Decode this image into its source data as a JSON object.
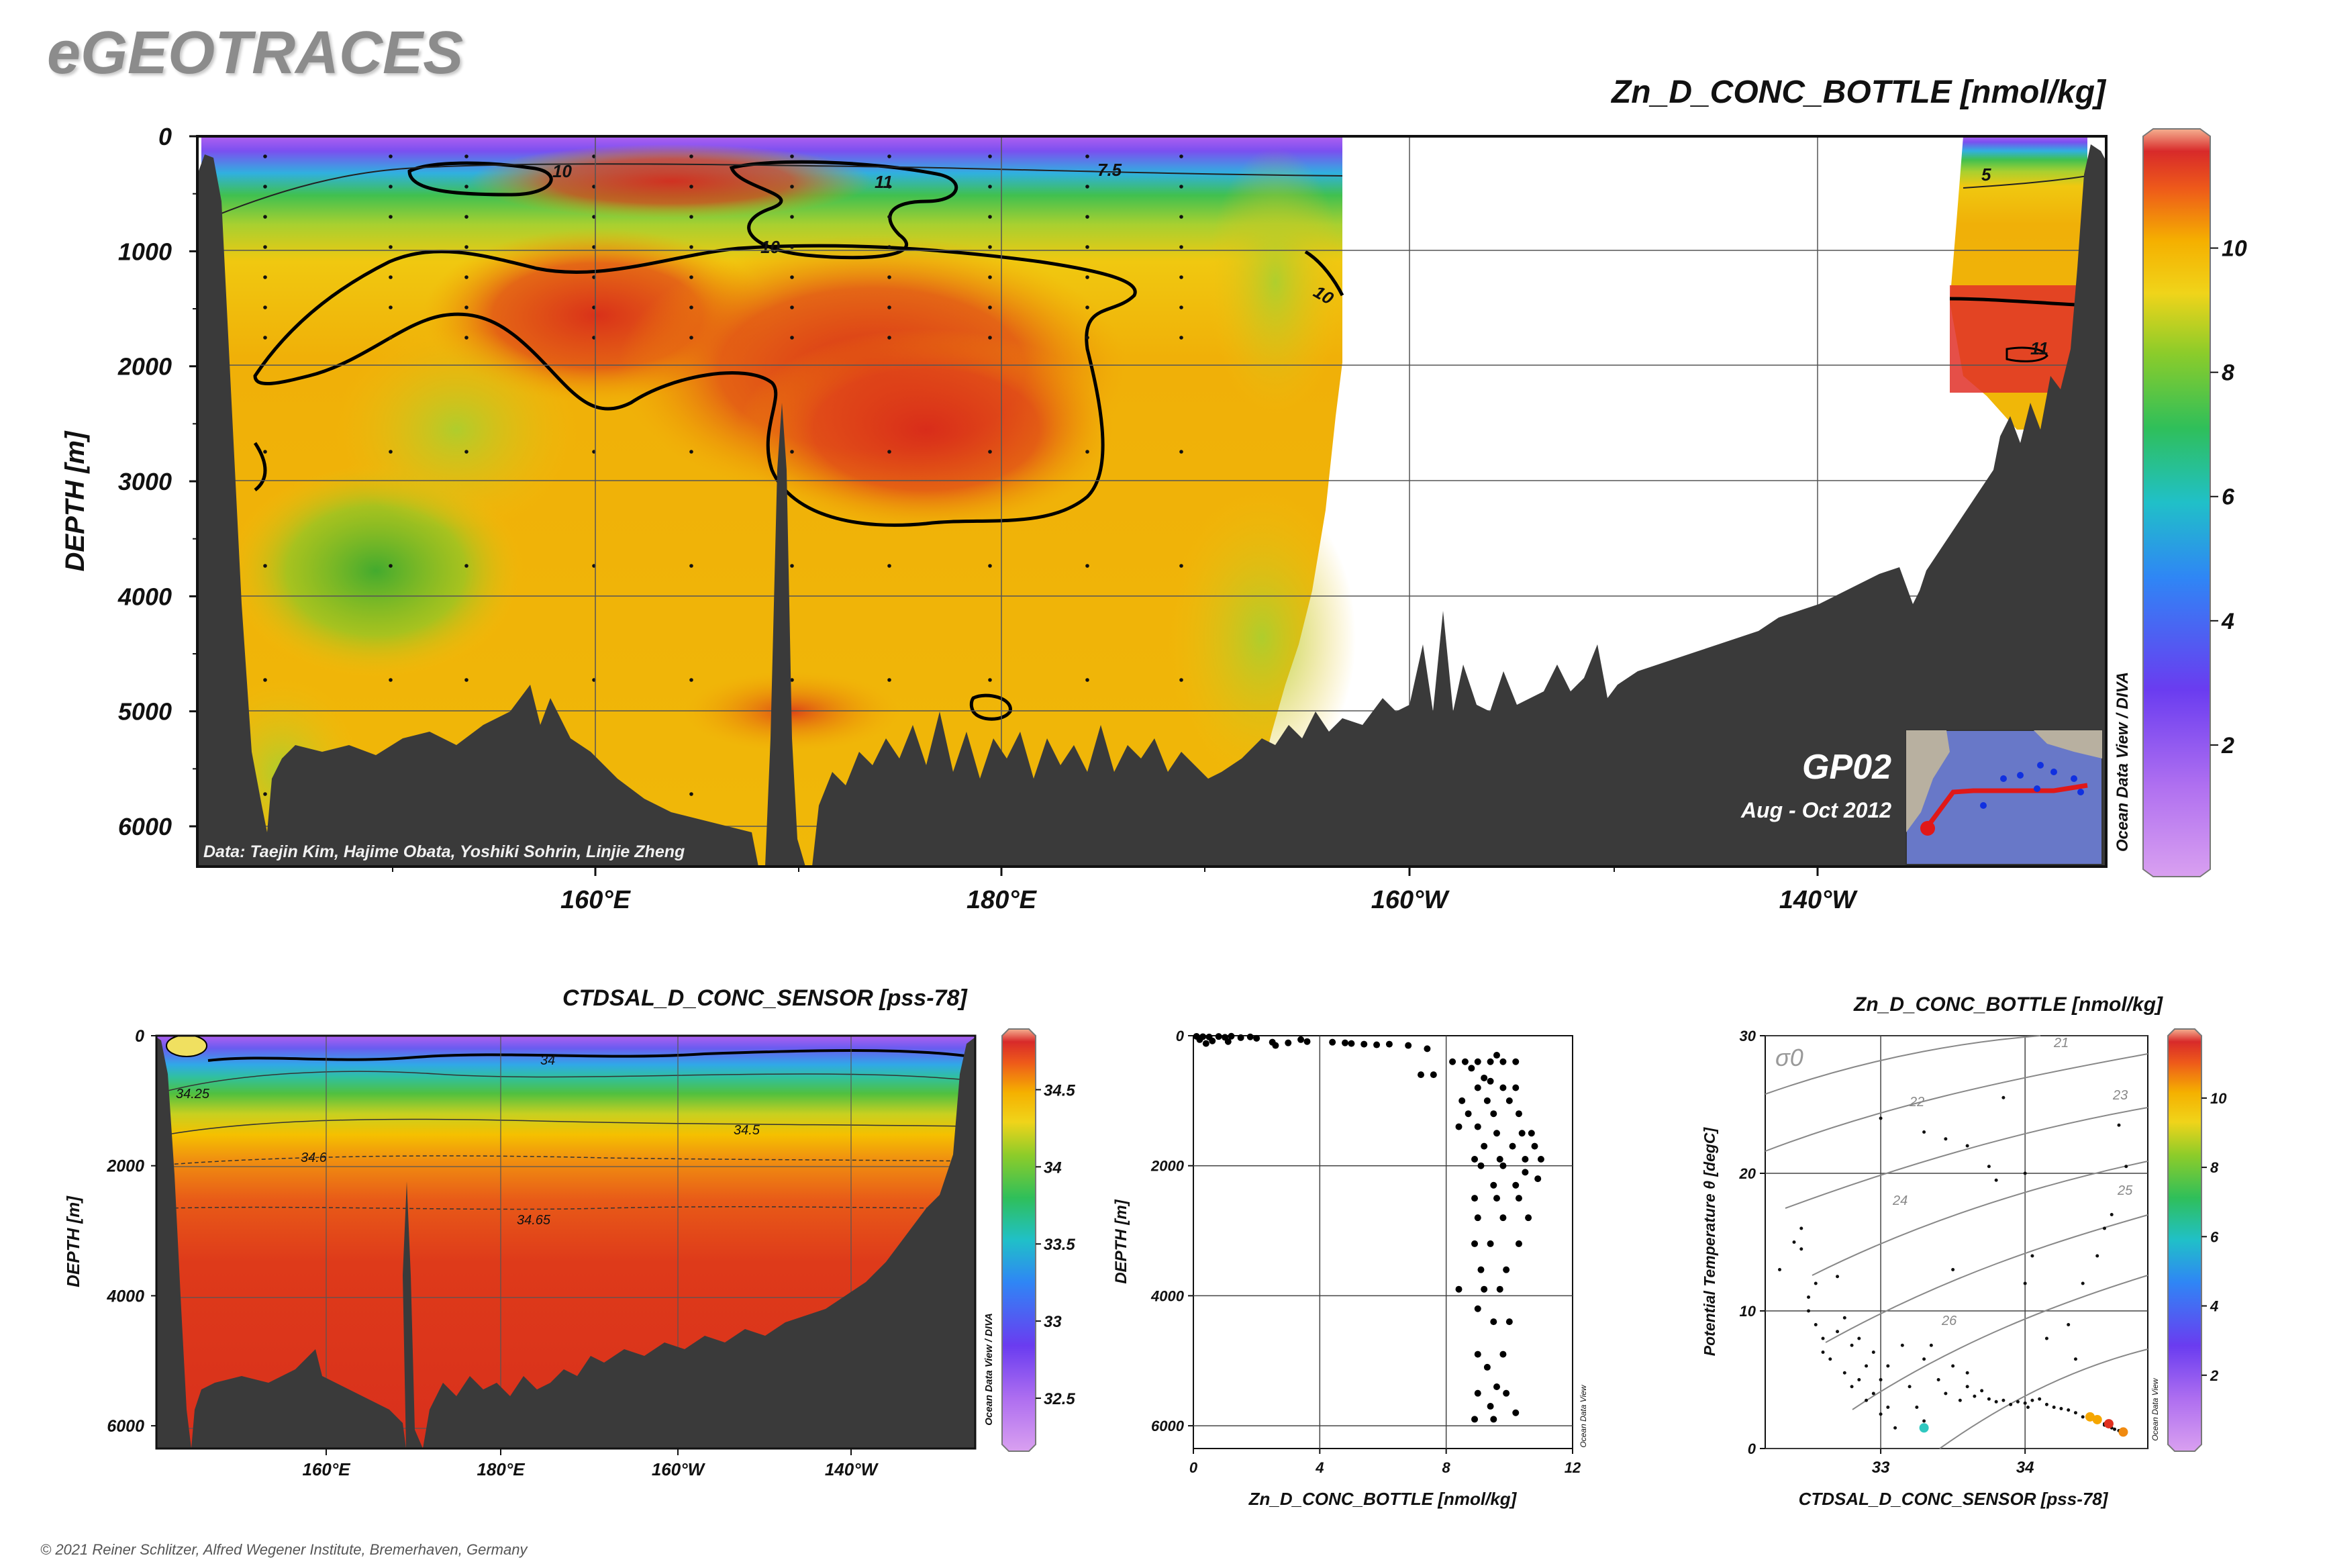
{
  "brand": "eGEOTRACES",
  "footer": "© 2021 Reiner Schlitzer, Alfred Wegener Institute, Bremerhaven, Germany",
  "colors": {
    "land": "#3a3a3a",
    "contour": "#000000",
    "palette": [
      "#d9a0f0",
      "#9b4dea",
      "#5a3cf0",
      "#2f86f5",
      "#20c8d0",
      "#2fbf5a",
      "#8ccc2a",
      "#f0d41a",
      "#f5b000",
      "#ee6a1a",
      "#d82a2a",
      "#f5b090"
    ]
  },
  "chart_data": [
    {
      "type": "heatmap",
      "id": "section-zn",
      "title": "Zn_D_CONC_BOTTLE [nmol/kg]",
      "ylabel": "DEPTH [m]",
      "xlabel": "",
      "yticks": [
        "0",
        "1000",
        "2000",
        "3000",
        "4000",
        "5000",
        "6000"
      ],
      "ylim": [
        6350,
        0
      ],
      "xticks": [
        "160°E",
        "180°E",
        "160°W",
        "140°W"
      ],
      "colorbar_ticks": [
        "2",
        "4",
        "6",
        "8",
        "10"
      ],
      "colorbar_range": [
        0,
        11.8
      ],
      "contour_labels": [
        "10",
        "11",
        "7.5",
        "10",
        "10",
        "5",
        "11"
      ],
      "credit": "Data: Taejin Kim, Hajime Obata, Yoshiki Sohrin, Linjie Zheng",
      "cruise": "GP02",
      "period": "Aug - Oct 2012",
      "watermark": "Ocean Data View / DIVA"
    },
    {
      "type": "heatmap",
      "id": "section-sal",
      "title": "CTDSAL_D_CONC_SENSOR [pss-78]",
      "ylabel": "DEPTH [m]",
      "xlabel": "",
      "yticks": [
        "0",
        "2000",
        "4000",
        "6000"
      ],
      "ylim": [
        6350,
        0
      ],
      "xticks": [
        "160°E",
        "180°E",
        "160°W",
        "140°W"
      ],
      "colorbar_ticks": [
        "32.5",
        "33",
        "33.5",
        "34",
        "34.5"
      ],
      "colorbar_range": [
        32.2,
        34.85
      ],
      "contour_labels": [
        "34",
        "34.25",
        "34.5",
        "34.6",
        "34.65"
      ],
      "watermark": "Ocean Data View / DIVA"
    },
    {
      "type": "scatter",
      "id": "profile",
      "title": "",
      "xlabel": "Zn_D_CONC_BOTTLE [nmol/kg]",
      "ylabel": "DEPTH [m]",
      "xlim": [
        0,
        12
      ],
      "ylim": [
        6350,
        0
      ],
      "xticks": [
        "0",
        "4",
        "8",
        "12"
      ],
      "yticks": [
        "0",
        "2000",
        "4000",
        "6000"
      ],
      "watermark": "Ocean Data View",
      "points": [
        [
          0.1,
          10
        ],
        [
          0.3,
          15
        ],
        [
          0.5,
          20
        ],
        [
          0.8,
          12
        ],
        [
          1.0,
          25
        ],
        [
          1.2,
          8
        ],
        [
          1.5,
          30
        ],
        [
          1.8,
          18
        ],
        [
          2.0,
          40
        ],
        [
          0.2,
          60
        ],
        [
          0.6,
          80
        ],
        [
          1.1,
          90
        ],
        [
          2.5,
          100
        ],
        [
          0.4,
          120
        ],
        [
          2.6,
          150
        ],
        [
          3.0,
          110
        ],
        [
          3.4,
          60
        ],
        [
          3.6,
          90
        ],
        [
          4.4,
          100
        ],
        [
          4.8,
          110
        ],
        [
          5.0,
          120
        ],
        [
          5.4,
          130
        ],
        [
          5.8,
          140
        ],
        [
          6.2,
          130
        ],
        [
          6.8,
          150
        ],
        [
          7.4,
          200
        ],
        [
          7.2,
          600
        ],
        [
          7.6,
          600
        ],
        [
          8.2,
          400
        ],
        [
          8.6,
          400
        ],
        [
          9.0,
          400
        ],
        [
          9.4,
          400
        ],
        [
          9.8,
          400
        ],
        [
          10.2,
          400
        ],
        [
          8.8,
          500
        ],
        [
          9.6,
          300
        ],
        [
          9.2,
          650
        ],
        [
          9.4,
          700
        ],
        [
          9.0,
          800
        ],
        [
          9.8,
          800
        ],
        [
          10.2,
          800
        ],
        [
          8.5,
          1000
        ],
        [
          9.3,
          1000
        ],
        [
          10.0,
          1000
        ],
        [
          8.7,
          1200
        ],
        [
          9.5,
          1200
        ],
        [
          10.3,
          1200
        ],
        [
          8.4,
          1400
        ],
        [
          9.0,
          1400
        ],
        [
          9.6,
          1500
        ],
        [
          10.4,
          1500
        ],
        [
          10.7,
          1500
        ],
        [
          9.2,
          1700
        ],
        [
          10.1,
          1700
        ],
        [
          10.8,
          1700
        ],
        [
          8.9,
          1900
        ],
        [
          9.7,
          1900
        ],
        [
          10.5,
          1900
        ],
        [
          11.0,
          1900
        ],
        [
          9.1,
          2000
        ],
        [
          9.8,
          2000
        ],
        [
          10.5,
          2100
        ],
        [
          9.5,
          2300
        ],
        [
          10.2,
          2300
        ],
        [
          10.9,
          2200
        ],
        [
          8.9,
          2500
        ],
        [
          9.6,
          2500
        ],
        [
          10.3,
          2500
        ],
        [
          9.0,
          2800
        ],
        [
          9.8,
          2800
        ],
        [
          10.6,
          2800
        ],
        [
          8.9,
          3200
        ],
        [
          9.4,
          3200
        ],
        [
          10.3,
          3200
        ],
        [
          9.1,
          3600
        ],
        [
          9.9,
          3600
        ],
        [
          8.4,
          3900
        ],
        [
          9.2,
          3900
        ],
        [
          9.7,
          3900
        ],
        [
          9.0,
          4200
        ],
        [
          9.5,
          4400
        ],
        [
          10.0,
          4400
        ],
        [
          9.0,
          4900
        ],
        [
          9.8,
          4900
        ],
        [
          9.3,
          5100
        ],
        [
          9.6,
          5400
        ],
        [
          9.0,
          5500
        ],
        [
          9.9,
          5500
        ],
        [
          9.4,
          5700
        ],
        [
          8.9,
          5900
        ],
        [
          9.5,
          5900
        ],
        [
          10.2,
          5800
        ]
      ]
    },
    {
      "type": "scatter",
      "id": "ts-diagram",
      "title": "Zn_D_CONC_BOTTLE [nmol/kg]",
      "xlabel": "CTDSAL_D_CONC_SENSOR [pss-78]",
      "ylabel": "Potential Temperature θ [degC]",
      "xlim": [
        32.2,
        34.85
      ],
      "ylim": [
        0,
        30
      ],
      "xticks": [
        "33",
        "34"
      ],
      "yticks": [
        "0",
        "10",
        "20",
        "30"
      ],
      "isopycnal_label": "σ0",
      "isopycnals": [
        "21",
        "22",
        "23",
        "24",
        "25",
        "26"
      ],
      "colorbar_ticks": [
        "2",
        "4",
        "6",
        "8",
        "10"
      ],
      "colorbar_range": [
        0,
        11.8
      ],
      "watermark": "Ocean Data View",
      "points": [
        [
          32.3,
          13.0
        ],
        [
          32.4,
          15.0
        ],
        [
          32.45,
          16.0
        ],
        [
          32.45,
          14.5
        ],
        [
          32.5,
          11.0
        ],
        [
          32.5,
          10.0
        ],
        [
          32.55,
          12.0
        ],
        [
          32.55,
          9.0
        ],
        [
          32.6,
          8.0
        ],
        [
          32.6,
          7.0
        ],
        [
          32.65,
          6.5
        ],
        [
          32.7,
          12.5
        ],
        [
          32.7,
          8.5
        ],
        [
          32.75,
          5.5
        ],
        [
          32.75,
          9.5
        ],
        [
          32.8,
          7.5
        ],
        [
          32.8,
          4.5
        ],
        [
          32.85,
          8.0
        ],
        [
          32.85,
          5.0
        ],
        [
          32.9,
          6.0
        ],
        [
          32.9,
          3.5
        ],
        [
          32.95,
          7.0
        ],
        [
          32.95,
          4.0
        ],
        [
          33.0,
          2.5
        ],
        [
          33.0,
          5.0
        ],
        [
          33.05,
          6.0
        ],
        [
          33.05,
          3.0
        ],
        [
          33.1,
          1.5
        ],
        [
          33.15,
          7.5
        ],
        [
          33.2,
          4.5
        ],
        [
          33.25,
          3.0
        ],
        [
          33.3,
          2.0
        ],
        [
          33.3,
          6.5
        ],
        [
          33.35,
          7.5
        ],
        [
          33.4,
          5.0
        ],
        [
          33.45,
          4.0
        ],
        [
          33.5,
          6.0
        ],
        [
          33.55,
          3.5
        ],
        [
          33.6,
          4.5
        ],
        [
          33.6,
          5.5
        ],
        [
          33.65,
          3.8
        ],
        [
          33.7,
          4.2
        ],
        [
          33.75,
          3.6
        ],
        [
          33.8,
          3.4
        ],
        [
          33.85,
          3.5
        ],
        [
          33.9,
          3.2
        ],
        [
          33.95,
          3.4
        ],
        [
          34.0,
          3.3
        ],
        [
          34.02,
          3.0
        ],
        [
          34.05,
          3.5
        ],
        [
          34.1,
          3.6
        ],
        [
          34.15,
          3.2
        ],
        [
          34.2,
          3.0
        ],
        [
          34.25,
          2.9
        ],
        [
          34.3,
          2.8
        ],
        [
          34.35,
          2.6
        ],
        [
          34.4,
          2.3
        ],
        [
          34.45,
          2.1
        ],
        [
          34.5,
          1.9
        ],
        [
          34.55,
          1.7
        ],
        [
          34.6,
          1.5
        ],
        [
          34.65,
          1.3
        ],
        [
          33.0,
          24.0
        ],
        [
          33.3,
          23.0
        ],
        [
          33.45,
          22.5
        ],
        [
          33.6,
          22.0
        ],
        [
          33.75,
          20.5
        ],
        [
          33.8,
          19.5
        ],
        [
          33.85,
          25.5
        ],
        [
          34.0,
          20.0
        ],
        [
          34.05,
          14.0
        ],
        [
          34.15,
          8.0
        ],
        [
          34.3,
          9.0
        ],
        [
          34.4,
          12.0
        ],
        [
          34.5,
          14.0
        ],
        [
          34.55,
          16.0
        ],
        [
          34.6,
          17.0
        ],
        [
          34.65,
          23.5
        ],
        [
          34.7,
          20.5
        ],
        [
          33.5,
          13.0
        ],
        [
          34.0,
          12.0
        ],
        [
          34.35,
          6.5
        ],
        [
          33.3,
          1.5
        ],
        [
          34.45,
          2.2
        ],
        [
          34.55,
          1.8
        ],
        [
          34.62,
          1.4
        ]
      ],
      "colored_points": [
        {
          "sal": 34.45,
          "theta": 2.3,
          "color": "#f5a600"
        },
        {
          "sal": 34.5,
          "theta": 2.1,
          "color": "#f5a600"
        },
        {
          "sal": 34.58,
          "theta": 1.8,
          "color": "#e03020"
        },
        {
          "sal": 34.68,
          "theta": 1.2,
          "color": "#f08a10"
        },
        {
          "sal": 33.3,
          "theta": 1.5,
          "color": "#30c8c0"
        }
      ]
    }
  ]
}
